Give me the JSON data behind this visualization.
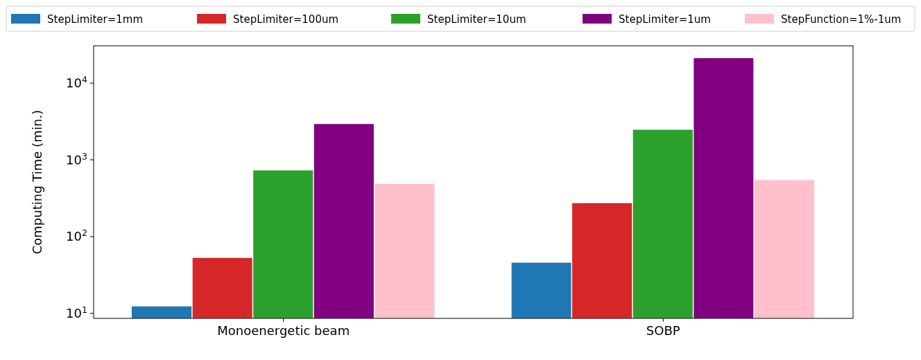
{
  "chart_data": {
    "type": "bar",
    "ylabel": "Computing Time (min.)",
    "categories": [
      "Monoenergetic beam",
      "SOBP"
    ],
    "log": "y",
    "ylim": [
      8.6,
      30700
    ],
    "yticks": [
      {
        "value": 10,
        "label": "10$^{1}$"
      },
      {
        "value": 100,
        "label": "10$^{2}$"
      },
      {
        "value": 1000,
        "label": "10$^{3}$"
      },
      {
        "value": 10000,
        "label": "10$^{4}$"
      }
    ],
    "legend": "top",
    "grid": false,
    "series": [
      {
        "name": "StepLimiter=1mm",
        "color": "#1f77b4",
        "values": [
          12.4,
          46
        ]
      },
      {
        "name": "StepLimiter=100um",
        "color": "#d62728",
        "values": [
          53,
          274
        ]
      },
      {
        "name": "StepLimiter=10um",
        "color": "#2ca02c",
        "values": [
          735,
          2480
        ]
      },
      {
        "name": "StepLimiter=1um",
        "color": "#800080",
        "values": [
          2950,
          21300
        ]
      },
      {
        "name": "StepFunction=1%-1um",
        "color": "#ffc0cb",
        "values": [
          489,
          550
        ]
      }
    ]
  }
}
